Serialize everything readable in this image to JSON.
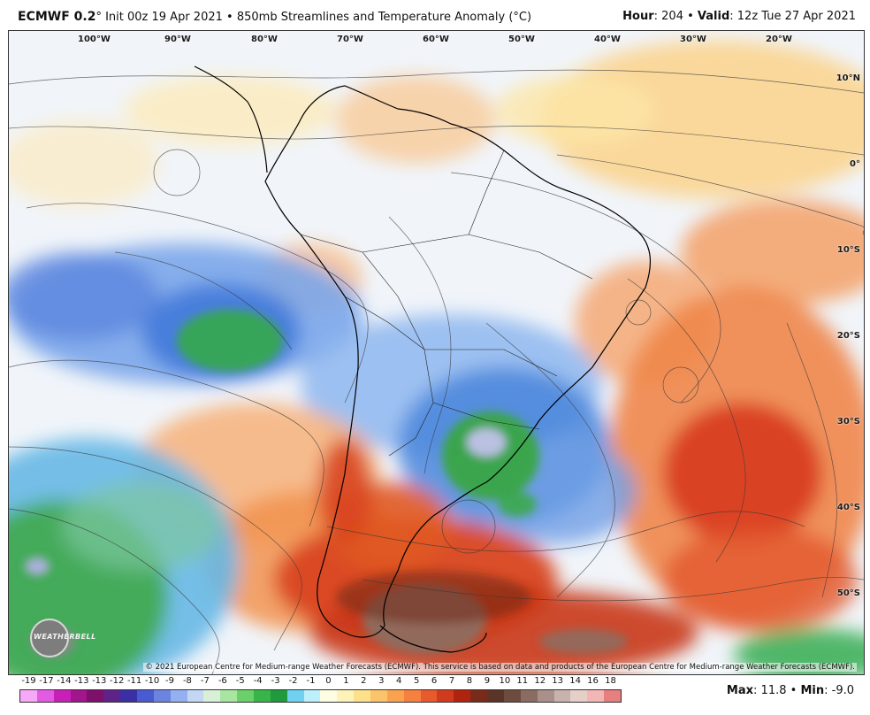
{
  "header": {
    "brand": "ECMWF 0.2",
    "degree": "°",
    "init": "Init 00z 19 Apr 2021",
    "bullet": "•",
    "product": "850mb Streamlines and Temperature Anomaly (°C)",
    "hour_label": "Hour",
    "hour_value": ": 204",
    "valid_label": "Valid",
    "valid_value": ": 12z Tue 27 Apr 2021"
  },
  "map": {
    "longitude_labels": [
      "100°W",
      "90°W",
      "80°W",
      "70°W",
      "60°W",
      "50°W",
      "40°W",
      "30°W",
      "20°W"
    ],
    "latitude_labels": [
      "10°N",
      "0°",
      "10°S",
      "20°S",
      "30°S",
      "40°S",
      "50°S"
    ],
    "copyright": "© 2021 European Centre for Medium-range Weather Forecasts (ECMWF). This service is based on data and products of the European Centre for Medium-range Weather Forecasts (ECMWF).",
    "logo_text": "WEATHERBELL",
    "logo_icon": "weatherbell-logo-icon"
  },
  "legend": {
    "labels": [
      "-19",
      "-17",
      "-14",
      "-13",
      "-13",
      "-12",
      "-11",
      "-10",
      "-9",
      "-8",
      "-7",
      "-6",
      "-5",
      "-4",
      "-3",
      "-2",
      "-1",
      "0",
      "1",
      "2",
      "3",
      "4",
      "5",
      "6",
      "7",
      "8",
      "9",
      "10",
      "11",
      "12",
      "13",
      "14",
      "16",
      "18"
    ],
    "colors": [
      "#f7a8f7",
      "#e35ae3",
      "#c71fb8",
      "#a3158c",
      "#7e0f6a",
      "#5e2288",
      "#3b2fa6",
      "#4a5ad0",
      "#6c84e0",
      "#94b0ee",
      "#c3d7f5",
      "#d8f0d8",
      "#a6e6a0",
      "#6ad06a",
      "#38b44a",
      "#1f9a3c",
      "#6fd0f0",
      "#bdf0fa",
      "#fdfde3",
      "#fdf2b8",
      "#fde08a",
      "#fcc46a",
      "#fba24f",
      "#f5803f",
      "#e85a2c",
      "#d03a1d",
      "#b0240f",
      "#7a2a18",
      "#5a3426",
      "#6e4b3f",
      "#8a6c62",
      "#a9908a",
      "#c7b2ac",
      "#e6cfc6",
      "#f3b6b6",
      "#e77f7f"
    ]
  },
  "stats": {
    "max_label": "Max",
    "max_value": ": 11.8",
    "min_label": "Min",
    "min_value": ": -9.0",
    "bullet": "•"
  }
}
